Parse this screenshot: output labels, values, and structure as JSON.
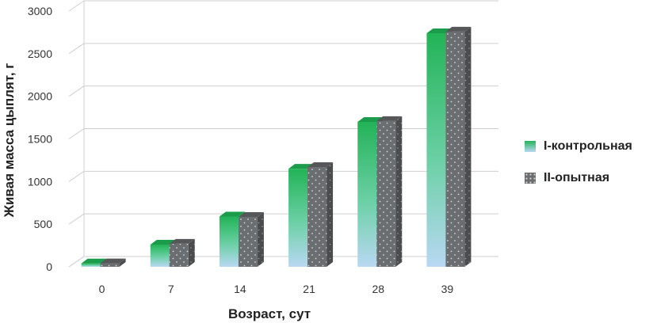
{
  "chart_data": {
    "type": "bar",
    "title": "",
    "xlabel": "Возраст, сут",
    "ylabel": "Живая масса цыплят, г",
    "categories": [
      "0",
      "7",
      "14",
      "21",
      "28",
      "39"
    ],
    "yticks": [
      "0",
      "500",
      "1000",
      "1500",
      "2000",
      "2500",
      "3000"
    ],
    "ylim": [
      0,
      3000
    ],
    "grid": true,
    "legend_position": "right",
    "series": [
      {
        "name": "I-контрольная",
        "values": [
          40,
          260,
          590,
          1150,
          1700,
          2740
        ],
        "color_top": "#22b357",
        "color_bottom": "#b7d7f0"
      },
      {
        "name": "II-опытная",
        "values": [
          41,
          270,
          585,
          1170,
          1710,
          2760
        ],
        "color": "#6b6e70"
      }
    ]
  }
}
